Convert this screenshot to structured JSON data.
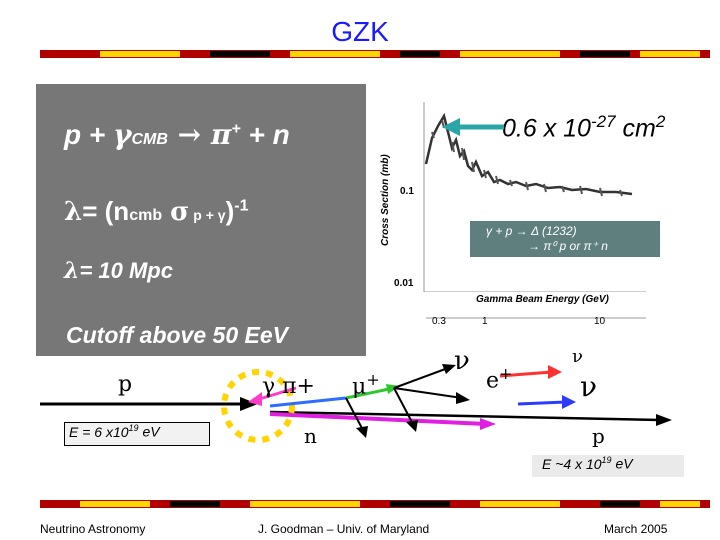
{
  "title": "GZK",
  "equation1": {
    "p": "p + ",
    "gamma": "γ",
    "cmb": "CMB",
    "arrow": " → ",
    "pi": "π",
    "plus": "+",
    "n": " + n"
  },
  "equation2": {
    "lambda": "λ",
    "eq": "= (n",
    "cmb": "cmb",
    "sigma": "σ",
    "sub": "p + γ",
    "close": ")",
    "exp": "-1"
  },
  "equation3": {
    "lambda": "λ",
    "text": "= 10 Mpc"
  },
  "cutoff": "Cutoff above 50 EeV",
  "cross_section": {
    "text": "0.6 x 10",
    "exp": "-27",
    "unit": " cm",
    "unit_exp": "2"
  },
  "plot": {
    "ylabel": "Cross Section (mb)",
    "xlabel": "Gamma Beam Energy (GeV)",
    "yticks": [
      "0.1",
      "0.01"
    ],
    "xticks": [
      "0.3",
      "1",
      "10"
    ]
  },
  "reaction": {
    "line1": "γ + p → Δ (1232)",
    "line2": "→  π⁰ p  or  π⁺ n"
  },
  "diagram": {
    "p_left": "p",
    "e_left": "E = 6 x10",
    "e_left_exp": "19",
    "e_left_unit": " eV",
    "gamma": "γ",
    "pi_plus": "π+",
    "mu": "μ",
    "mu_plus": "+",
    "nu1": "ν",
    "e_plus": "e",
    "e_plus_sup": "+",
    "nu_small": "ν",
    "nu_big": "ν",
    "n": "n",
    "p_right": "p",
    "e_right": "E ~4 x 10",
    "e_right_exp": "19",
    "e_right_unit": " eV"
  },
  "footer": {
    "left": "Neutrino Astronomy",
    "center": "J. Goodman – Univ. of Maryland",
    "right": "March 2005"
  }
}
